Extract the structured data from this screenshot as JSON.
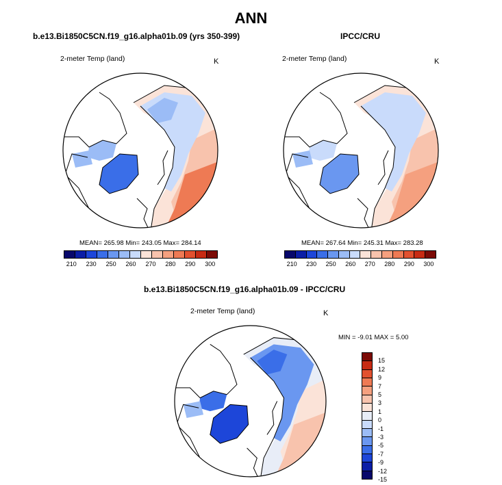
{
  "title": "ANN",
  "colors": {
    "abs_scale": [
      "#08086b",
      "#0b1ea6",
      "#1d46d9",
      "#3a6ee8",
      "#6a97f0",
      "#9bbcf6",
      "#c9dbfb",
      "#fbe3d8",
      "#f8c3ad",
      "#f5a07f",
      "#ee7a54",
      "#e2512f",
      "#c72b14",
      "#7c0b06"
    ],
    "diff_scale": [
      "#08086b",
      "#0b1ea6",
      "#1d46d9",
      "#3a6ee8",
      "#6a97f0",
      "#9bbcf6",
      "#c9dbfb",
      "#e8edf7",
      "#fbe3d8",
      "#f8c3ad",
      "#f5a07f",
      "#ee7a54",
      "#e2512f",
      "#c72b14",
      "#7c0b06"
    ],
    "coast": "#000000"
  },
  "chart_data": [
    {
      "type": "heatmap",
      "panel": "model",
      "title": "b.e13.Bi1850C5CN.f19_g16.alpha01b.09 (yrs 350-399)",
      "variable": "2-meter Temp (land)",
      "units": "K",
      "stats": "MEAN= 265.98  Min= 243.05  Max= 284.14",
      "mean": 265.98,
      "min": 243.05,
      "max": 284.14,
      "colorbar_ticks": [
        "210",
        "230",
        "250",
        "260",
        "270",
        "280",
        "290",
        "300"
      ]
    },
    {
      "type": "heatmap",
      "panel": "observations",
      "title": "IPCC/CRU",
      "variable": "2-meter Temp (land)",
      "units": "K",
      "stats": "MEAN= 267.64  Min= 245.31  Max= 283.28",
      "mean": 267.64,
      "min": 245.31,
      "max": 283.28,
      "colorbar_ticks": [
        "210",
        "230",
        "250",
        "260",
        "270",
        "280",
        "290",
        "300"
      ]
    },
    {
      "type": "heatmap",
      "panel": "difference",
      "title": "b.e13.Bi1850C5CN.f19_g16.alpha01b.09 - IPCC/CRU",
      "variable": "2-meter Temp (land)",
      "units": "K",
      "stats": "MIN =  -9.01 MAX =   5.00",
      "min": -9.01,
      "max": 5.0,
      "colorbar_ticks": [
        "15",
        "12",
        "9",
        "7",
        "5",
        "3",
        "1",
        "0",
        "-1",
        "-3",
        "-5",
        "-7",
        "-9",
        "-12",
        "-15"
      ]
    }
  ]
}
